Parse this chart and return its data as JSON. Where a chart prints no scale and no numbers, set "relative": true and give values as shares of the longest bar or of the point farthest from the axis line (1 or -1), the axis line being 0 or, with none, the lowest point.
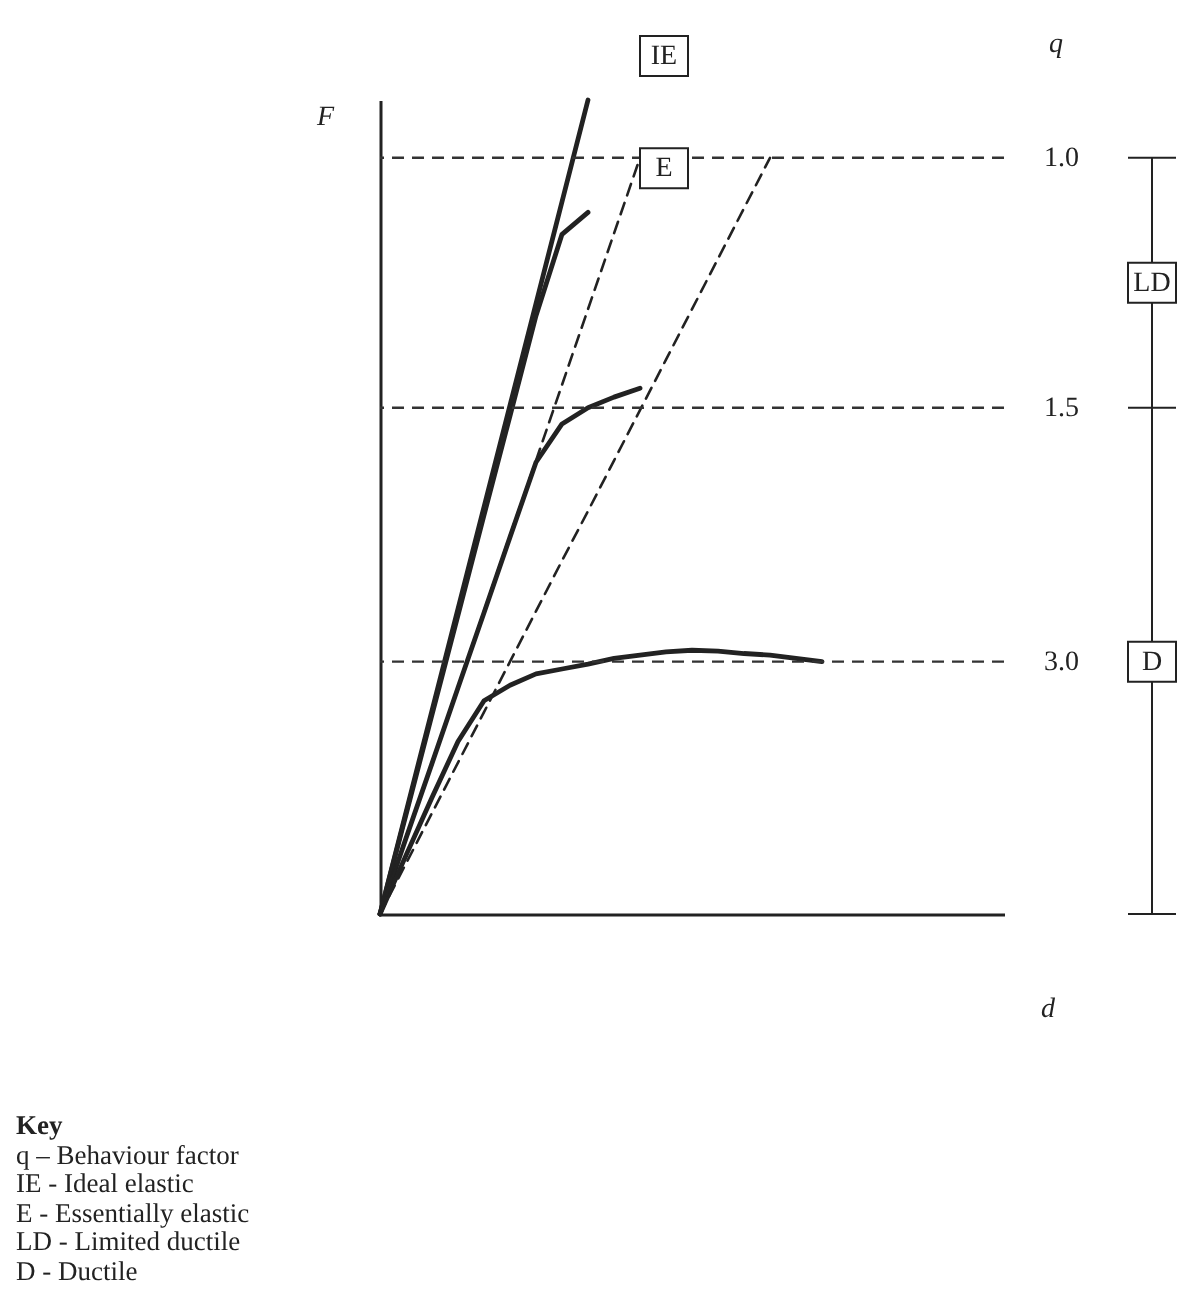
{
  "chart_data": {
    "type": "line",
    "relative": true,
    "xlabel": "d",
    "ylabel": "F",
    "categories": [
      null,
      null,
      null,
      null,
      null,
      null,
      null,
      null,
      null,
      null,
      null,
      null,
      null,
      null,
      null,
      null,
      null,
      null,
      null,
      null,
      null,
      null,
      null,
      null,
      null
    ],
    "series": [
      {
        "name": "IE",
        "color": "#222222",
        "values": [
          0,
          0.125,
          0.25,
          0.375,
          0.5,
          0.625,
          0.75,
          0.875,
          1,
          null,
          null,
          null,
          null,
          null,
          null,
          null,
          null,
          null,
          null,
          null,
          null,
          null,
          null,
          null,
          null
        ]
      },
      {
        "name": "E",
        "color": "#222222",
        "values": [
          0,
          0.122,
          0.245,
          0.367,
          0.49,
          0.612,
          0.735,
          0.835,
          0.862,
          null,
          null,
          null,
          null,
          null,
          null,
          null,
          null,
          null,
          null,
          null,
          null,
          null,
          null,
          null,
          null
        ]
      },
      {
        "color": "#222222",
        "values": [
          0,
          0.093,
          0.185,
          0.278,
          0.37,
          0.463,
          0.555,
          0.602,
          0.622,
          0.635,
          0.646,
          null,
          null,
          null,
          null,
          null,
          null,
          null,
          null,
          null,
          null,
          null,
          null,
          null,
          null
        ]
      },
      {
        "color": "#222222",
        "values": [
          0,
          0.072,
          0.143,
          0.212,
          0.262,
          0.281,
          0.295,
          0.301,
          0.307,
          0.314,
          0.318,
          0.322,
          0.324,
          0.323,
          0.32,
          0.318,
          0.314,
          0.31,
          null,
          null,
          null,
          null,
          null,
          null,
          null
        ]
      },
      {
        "color": "#222222",
        "line_style": "dashed",
        "values": [
          0,
          0.093,
          0.186,
          0.279,
          0.372,
          0.465,
          0.557,
          0.65,
          0.743,
          0.836,
          0.929,
          null,
          null,
          null,
          null,
          null,
          null,
          null,
          null,
          null,
          null,
          null,
          null,
          null,
          null
        ]
      },
      {
        "color": "#222222",
        "line_style": "dashed",
        "values": [
          0,
          0.062,
          0.124,
          0.186,
          0.248,
          0.31,
          0.372,
          0.434,
          0.495,
          0.557,
          0.619,
          0.681,
          0.743,
          0.805,
          0.867,
          0.929,
          null,
          null,
          null,
          null,
          null,
          null,
          null,
          null,
          null
        ]
      }
    ],
    "ref_lines": [
      {
        "axis": "y",
        "value": 0.929,
        "line_style": "dashed"
      },
      {
        "axis": "y",
        "value": 0.622,
        "line_style": "dashed"
      },
      {
        "axis": "y",
        "value": 0.31,
        "line_style": "dashed"
      }
    ],
    "annotations": [
      "q",
      "1.0",
      "1.5",
      "3.0",
      "LD",
      "D",
      "Key",
      "q – Behaviour factor",
      "IE - Ideal elastic",
      "E - Essentially elastic",
      "LD - Limited ductile",
      "D - Ductile"
    ]
  }
}
